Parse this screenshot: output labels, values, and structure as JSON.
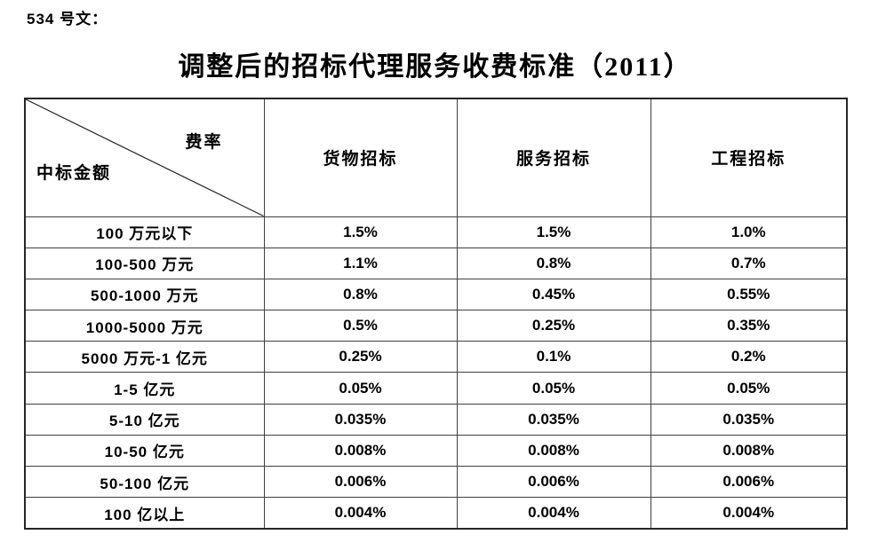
{
  "page": {
    "doc_label": "534 号文：",
    "title": "调整后的招标代理服务收费标准（2011）"
  },
  "table": {
    "corner": {
      "top_right": "费率",
      "bottom_left": "中标金额"
    },
    "columns": [
      "货物招标",
      "服务招标",
      "工程招标"
    ],
    "rows": [
      {
        "label": "100 万元以下",
        "values": [
          "1.5%",
          "1.5%",
          "1.0%"
        ]
      },
      {
        "label": "100-500 万元",
        "values": [
          "1.1%",
          "0.8%",
          "0.7%"
        ]
      },
      {
        "label": "500-1000 万元",
        "values": [
          "0.8%",
          "0.45%",
          "0.55%"
        ]
      },
      {
        "label": "1000-5000 万元",
        "values": [
          "0.5%",
          "0.25%",
          "0.35%"
        ]
      },
      {
        "label": "5000 万元-1 亿元",
        "values": [
          "0.25%",
          "0.1%",
          "0.2%"
        ]
      },
      {
        "label": "1-5 亿元",
        "values": [
          "0.05%",
          "0.05%",
          "0.05%"
        ]
      },
      {
        "label": "5-10 亿元",
        "values": [
          "0.035%",
          "0.035%",
          "0.035%"
        ]
      },
      {
        "label": "10-50 亿元",
        "values": [
          "0.008%",
          "0.008%",
          "0.008%"
        ]
      },
      {
        "label": "50-100 亿元",
        "values": [
          "0.006%",
          "0.006%",
          "0.006%"
        ]
      },
      {
        "label": "100 亿以上",
        "values": [
          "0.004%",
          "0.004%",
          "0.004%"
        ]
      }
    ]
  },
  "colors": {
    "border_outer": "#262626",
    "border_inner": "#404040",
    "text": "#000000",
    "background": "#ffffff"
  }
}
